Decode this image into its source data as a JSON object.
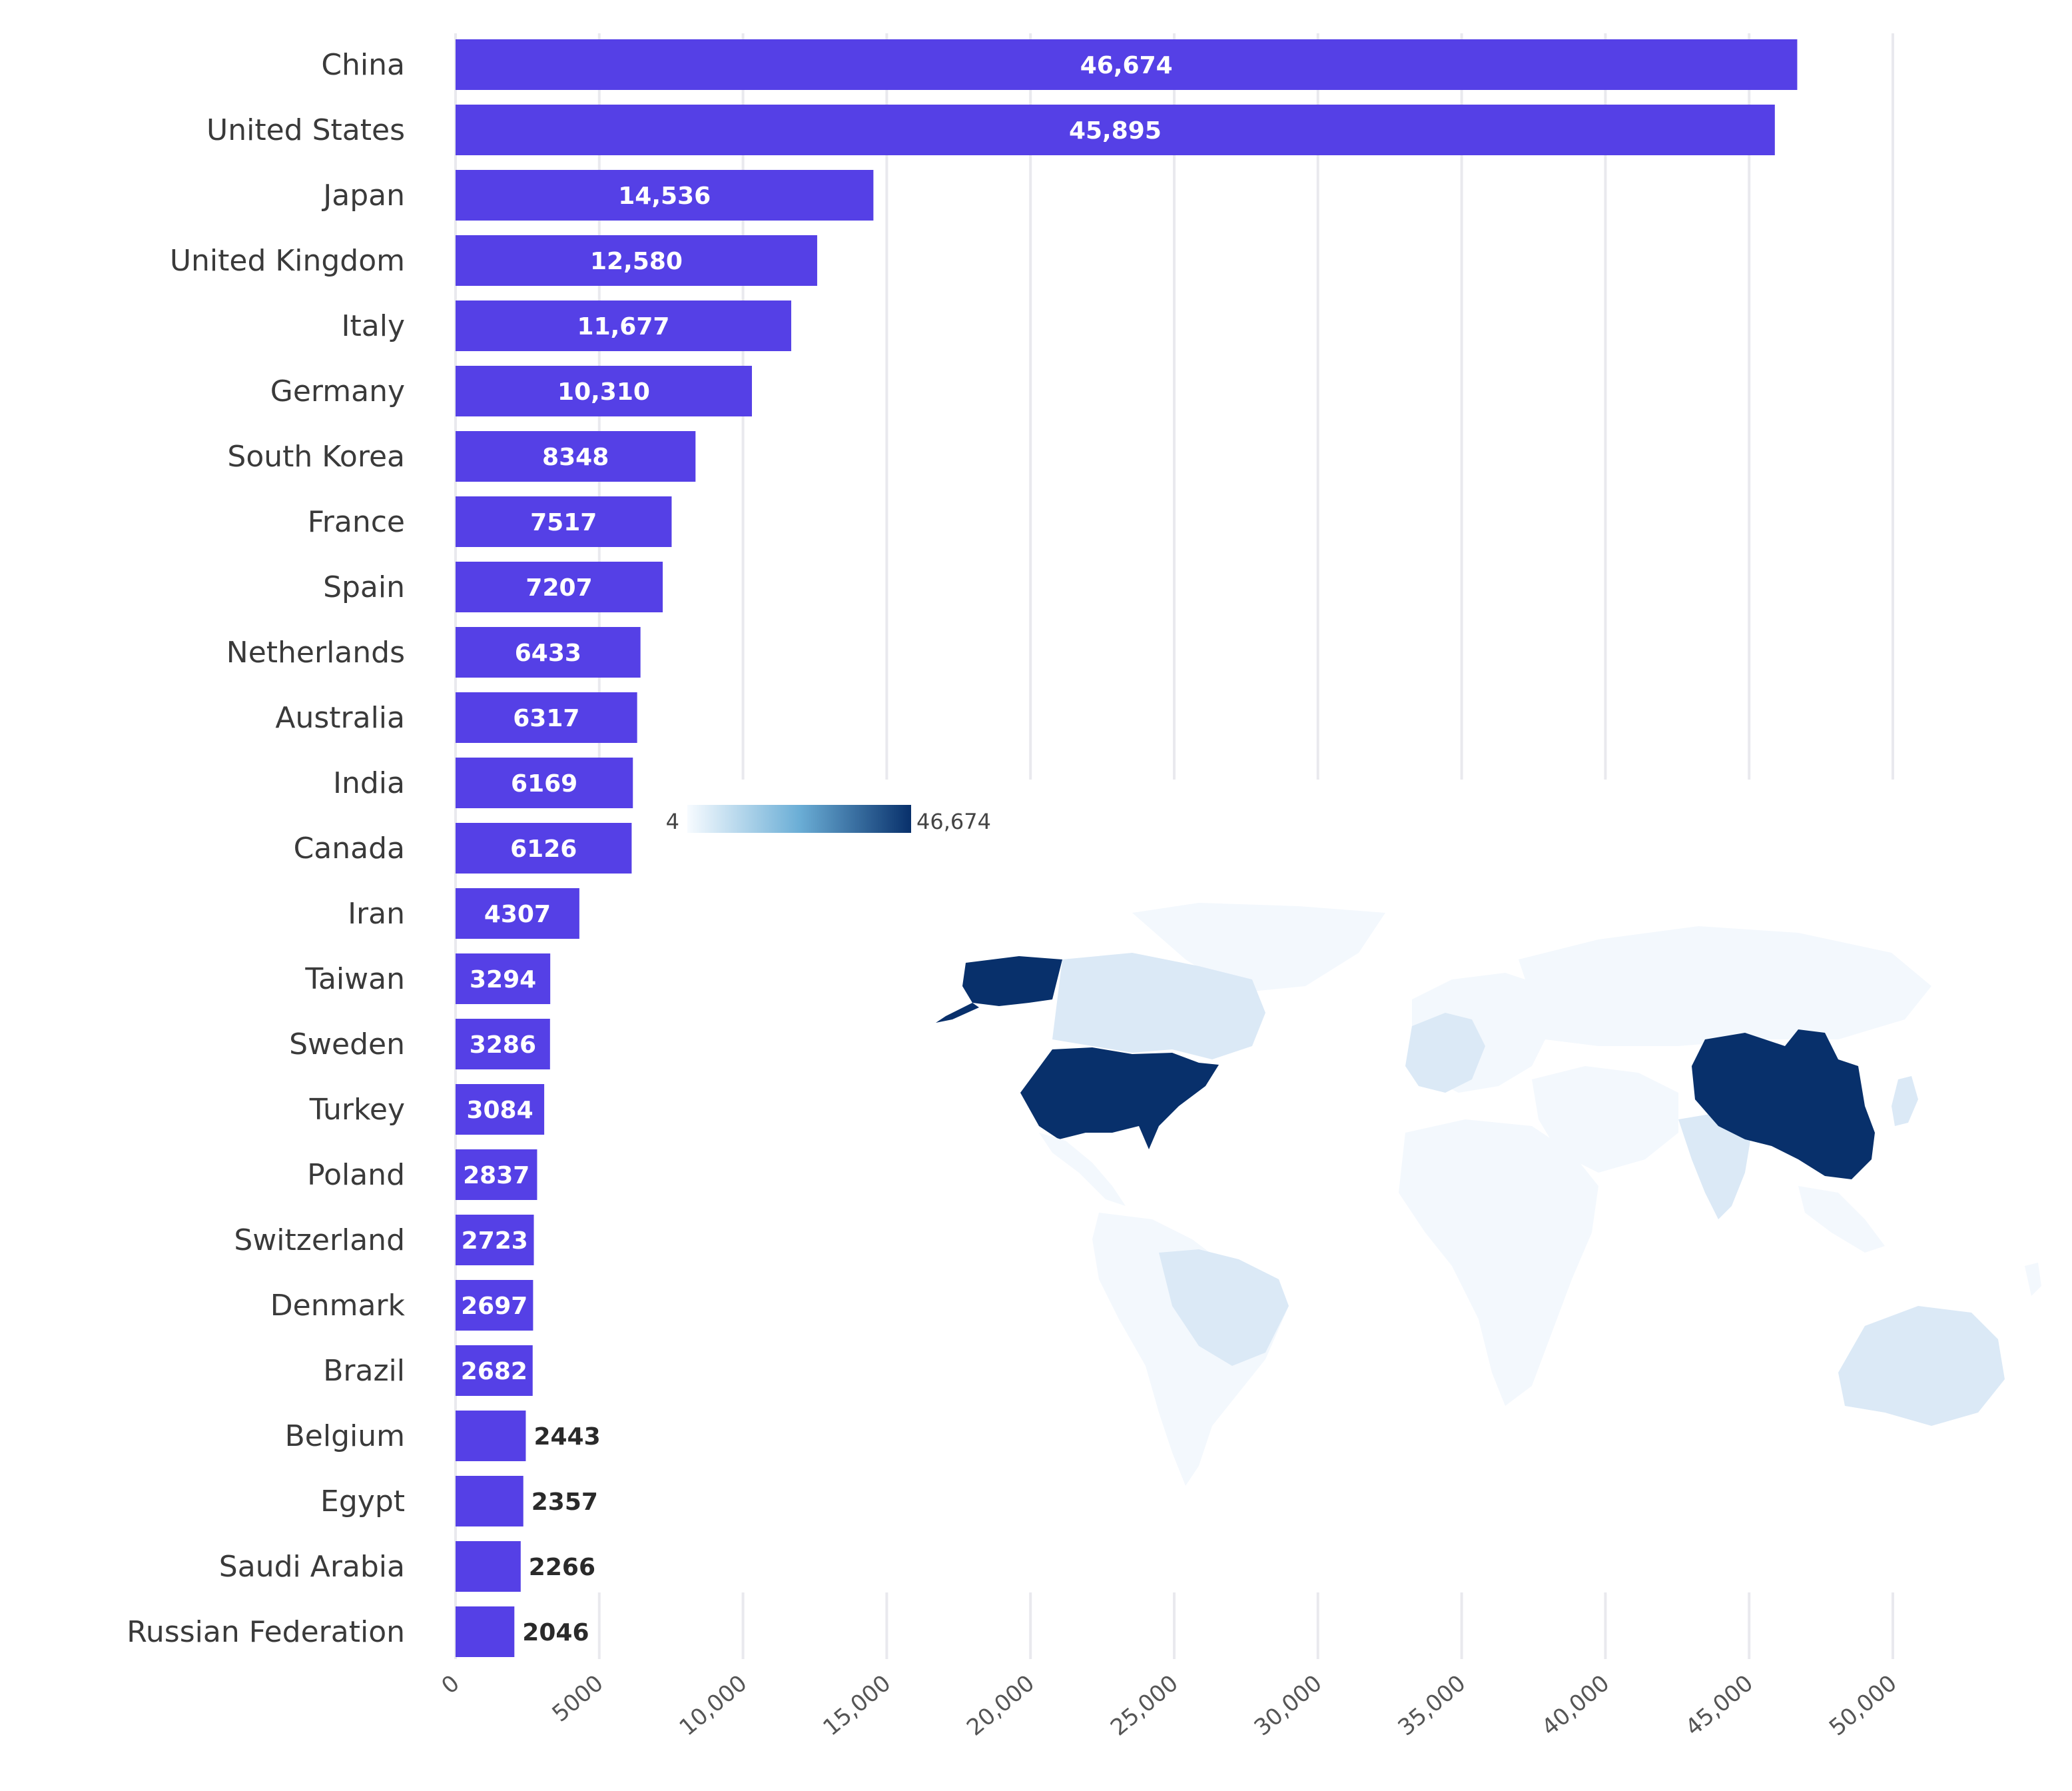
{
  "chart_data": {
    "type": "bar",
    "orientation": "horizontal",
    "title": "",
    "xlabel": "",
    "ylabel": "",
    "xlim": [
      0,
      50000
    ],
    "grid": true,
    "categories": [
      "China",
      "United States",
      "Japan",
      "United Kingdom",
      "Italy",
      "Germany",
      "South Korea",
      "France",
      "Spain",
      "Netherlands",
      "Australia",
      "India",
      "Canada",
      "Iran",
      "Taiwan",
      "Sweden",
      "Turkey",
      "Poland",
      "Switzerland",
      "Denmark",
      "Brazil",
      "Belgium",
      "Egypt",
      "Saudi Arabia",
      "Russian Federation"
    ],
    "values": [
      46674,
      45895,
      14536,
      12580,
      11677,
      10310,
      8348,
      7517,
      7207,
      6433,
      6317,
      6169,
      6126,
      4307,
      3294,
      3286,
      3084,
      2837,
      2723,
      2697,
      2682,
      2443,
      2357,
      2266,
      2046
    ],
    "value_labels": [
      "46,674",
      "45,895",
      "14,536",
      "12,580",
      "11,677",
      "10,310",
      "8348",
      "7517",
      "7207",
      "6433",
      "6317",
      "6169",
      "6126",
      "4307",
      "3294",
      "3286",
      "3084",
      "2837",
      "2723",
      "2697",
      "2682",
      "2443",
      "2357",
      "2266",
      "2046"
    ],
    "x_ticks": [
      "0",
      "5000",
      "10,000",
      "15,000",
      "20,000",
      "25,000",
      "30,000",
      "35,000",
      "40,000",
      "45,000",
      "50,000"
    ],
    "bar_color": "#5540e6",
    "inset_map": {
      "type": "choropleth",
      "legend_min": "4",
      "legend_max": "46,674",
      "color_low": "#f7fbff",
      "color_high": "#08306b"
    }
  }
}
